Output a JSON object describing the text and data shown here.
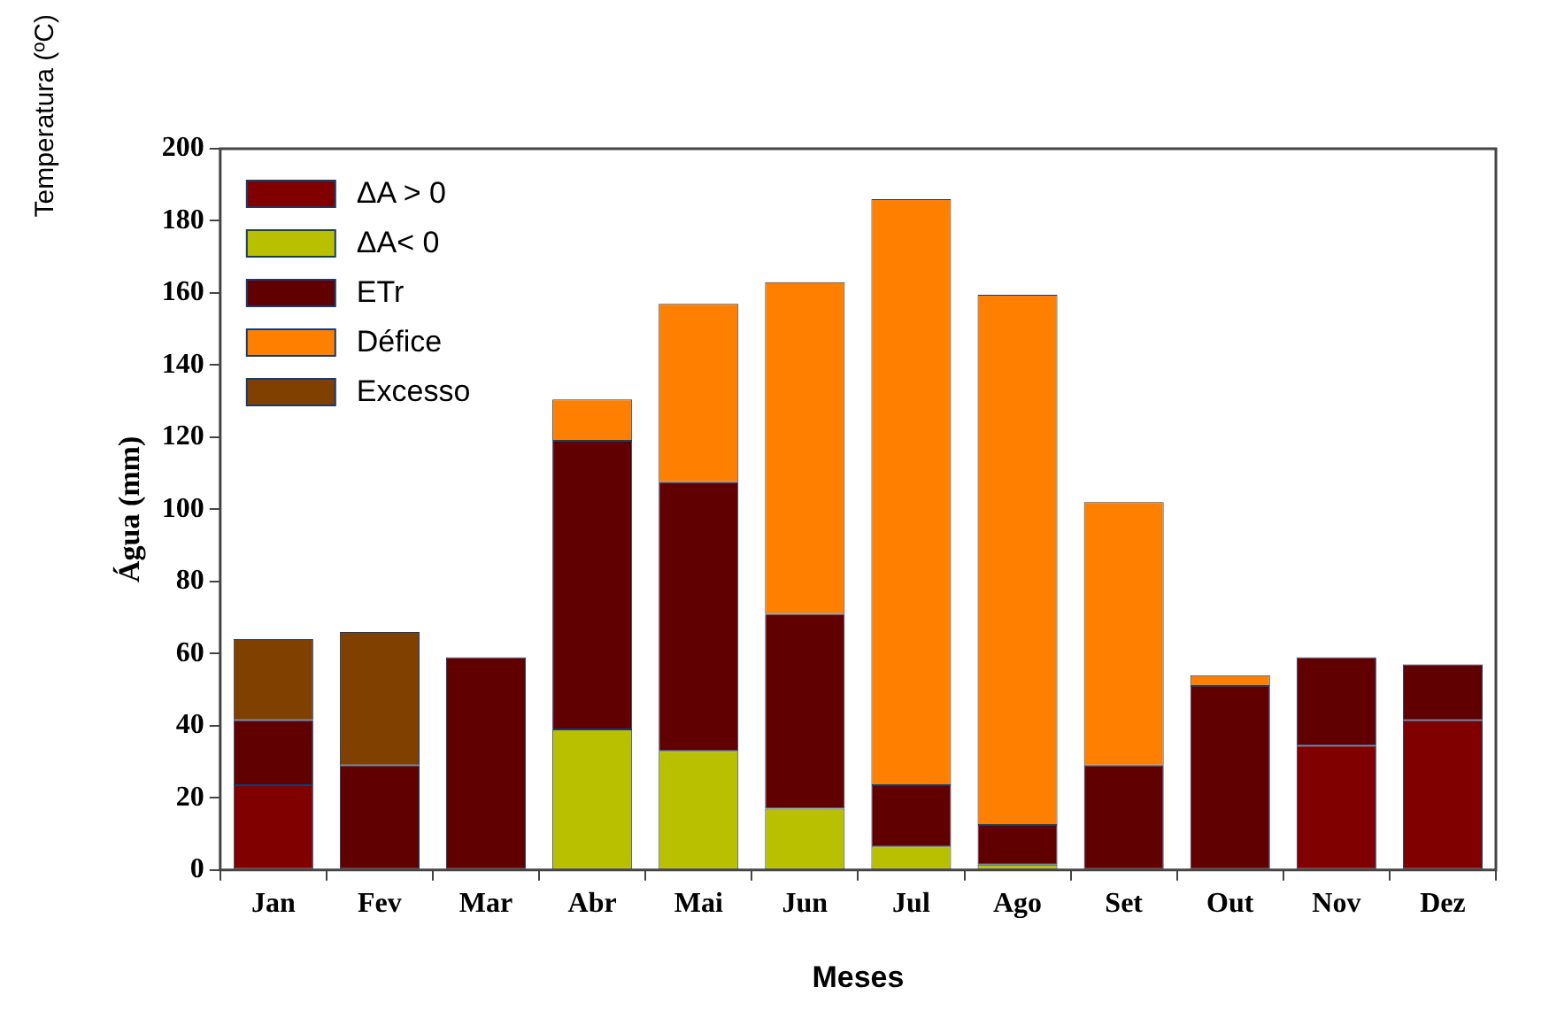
{
  "chart_data": {
    "type": "bar",
    "stacked": true,
    "xlabel": "Meses",
    "ylabel": "Água (mm)",
    "annotations": [
      "Temperatura (ºC)"
    ],
    "categories": [
      "Jan",
      "Fev",
      "Mar",
      "Abr",
      "Mai",
      "Jun",
      "Jul",
      "Ago",
      "Set",
      "Out",
      "Nov",
      "Dez"
    ],
    "series": [
      {
        "name": "ΔA > 0",
        "color": "#800000",
        "values": [
          23.5,
          0,
          0,
          0,
          0,
          0,
          0,
          0,
          0,
          0,
          34.5,
          41.5
        ]
      },
      {
        "name": "ΔA< 0",
        "color": "#b8c000",
        "values": [
          0,
          0,
          0,
          39,
          33,
          17,
          6.5,
          1.5,
          0,
          0,
          0,
          0
        ]
      },
      {
        "name": "ETr",
        "color": "#600000",
        "values": [
          18,
          29,
          59,
          80,
          74.5,
          54,
          17,
          11,
          29,
          51,
          24.5,
          15.5
        ]
      },
      {
        "name": "Défice",
        "color": "#ff8000",
        "values": [
          0,
          0,
          0,
          11.5,
          49.5,
          92,
          162.5,
          147,
          73,
          3,
          0,
          0
        ]
      },
      {
        "name": "Excesso",
        "color": "#804000",
        "values": [
          22.5,
          37,
          0,
          0,
          0,
          0,
          0,
          0,
          0,
          0,
          0,
          0
        ]
      }
    ],
    "ylim": [
      0,
      200
    ],
    "yticks": [
      0,
      20,
      40,
      60,
      80,
      100,
      120,
      140,
      160,
      180,
      200
    ],
    "grid": false,
    "legend": "top left"
  }
}
